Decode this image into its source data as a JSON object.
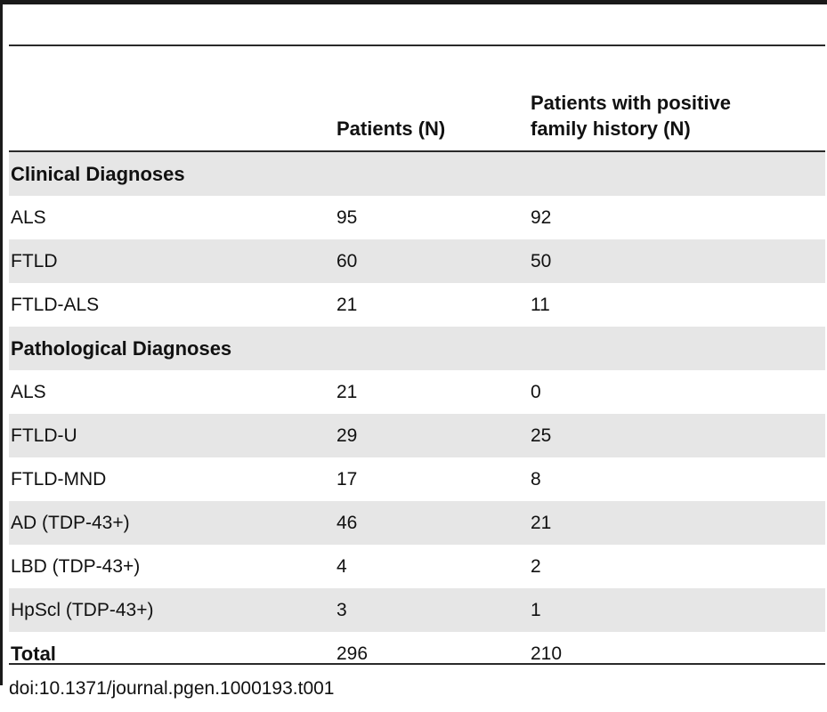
{
  "table": {
    "headers": {
      "label": "",
      "patients": "Patients (N)",
      "family_line1": "Patients with positive",
      "family_line2": "family history (N)"
    },
    "rows": [
      {
        "kind": "section",
        "label": "Clinical Diagnoses",
        "patients": "",
        "family": ""
      },
      {
        "kind": "data",
        "label": "ALS",
        "patients": "95",
        "family": "92"
      },
      {
        "kind": "data",
        "label": "FTLD",
        "patients": "60",
        "family": "50"
      },
      {
        "kind": "data",
        "label": "FTLD-ALS",
        "patients": "21",
        "family": "11"
      },
      {
        "kind": "section",
        "label": "Pathological Diagnoses",
        "patients": "",
        "family": ""
      },
      {
        "kind": "data",
        "label": "ALS",
        "patients": "21",
        "family": "0"
      },
      {
        "kind": "data",
        "label": "FTLD-U",
        "patients": "29",
        "family": "25"
      },
      {
        "kind": "data",
        "label": "FTLD-MND",
        "patients": "17",
        "family": "8"
      },
      {
        "kind": "data",
        "label": "AD (TDP-43+)",
        "patients": "46",
        "family": "21"
      },
      {
        "kind": "data",
        "label": "LBD (TDP-43+)",
        "patients": "4",
        "family": "2"
      },
      {
        "kind": "data",
        "label": "HpScl (TDP-43+)",
        "patients": "3",
        "family": "1"
      },
      {
        "kind": "total",
        "label": "Total",
        "patients": "296",
        "family": "210"
      }
    ]
  },
  "footer": {
    "doi": "doi:10.1371/journal.pgen.1000193.t001"
  },
  "colors": {
    "shade": "#e6e6e6",
    "rule": "#2a2a2a"
  }
}
